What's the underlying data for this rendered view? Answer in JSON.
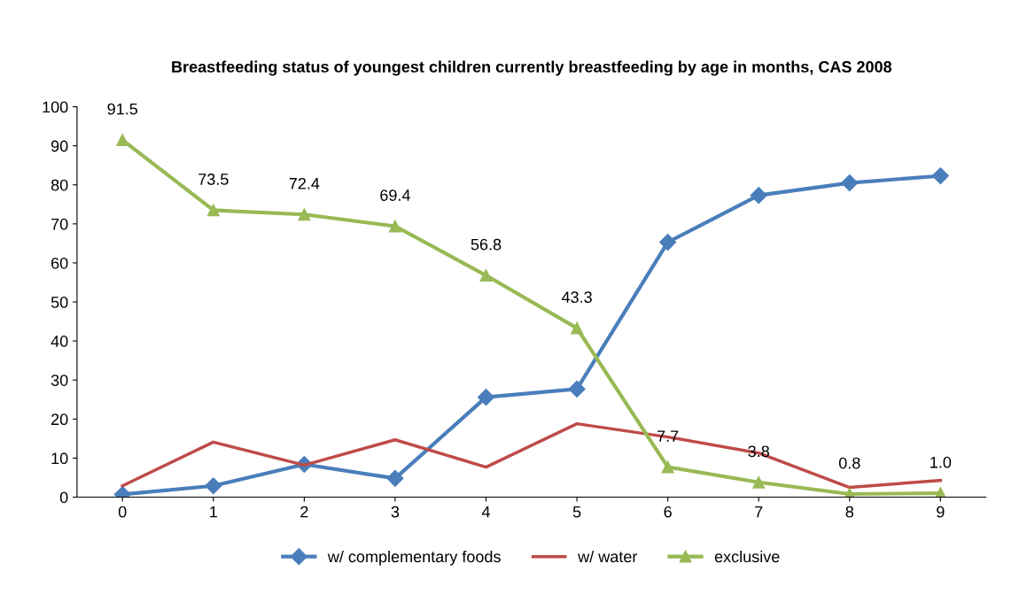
{
  "chart_data": {
    "type": "line",
    "title": "Breastfeeding status of youngest children currently breastfeeding by age in months, CAS 2008",
    "categories": [
      "0",
      "1",
      "2",
      "3",
      "4",
      "5",
      "6",
      "7",
      "8",
      "9"
    ],
    "ylim": [
      0,
      100
    ],
    "yticks": [
      0,
      10,
      20,
      30,
      40,
      50,
      60,
      70,
      80,
      90,
      100
    ],
    "grid": false,
    "legend": "bottom",
    "series": [
      {
        "name": "w/ complementary foods",
        "color": "#4a7ebb",
        "marker": "diamond",
        "values": [
          0.7,
          2.9,
          8.4,
          4.8,
          25.6,
          27.7,
          65.3,
          77.3,
          80.5,
          82.3
        ]
      },
      {
        "name": "w/ water",
        "color": "#be4b48",
        "marker": "none",
        "values": [
          2.9,
          14.1,
          8.2,
          14.7,
          7.7,
          18.8,
          15.4,
          11.3,
          2.5,
          4.3
        ]
      },
      {
        "name": "exclusive",
        "color": "#98b954",
        "marker": "triangle",
        "values": [
          91.5,
          73.5,
          72.4,
          69.4,
          56.8,
          43.3,
          7.7,
          3.8,
          0.8,
          1.0
        ],
        "value_labels": [
          "91.5",
          "73.5",
          "72.4",
          "69.4",
          "56.8",
          "43.3",
          "7.7",
          "3.8",
          "0.8",
          "1.0"
        ]
      }
    ]
  }
}
